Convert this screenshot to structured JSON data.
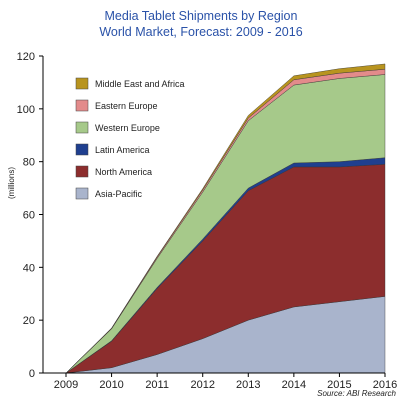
{
  "chart_data": {
    "type": "area",
    "stacked": true,
    "title": "Media Tablet Shipments by Region",
    "subtitle": "World Market, Forecast: 2009 - 2016",
    "ylabel": "(millions)",
    "xlabel": "",
    "source": "Source: ABI Research",
    "x": [
      "2009",
      "2010",
      "2011",
      "2012",
      "2013",
      "2014",
      "2015",
      "2016"
    ],
    "ylim": [
      0,
      120
    ],
    "yticks": [
      "0",
      "20",
      "40",
      "60",
      "80",
      "100",
      "120"
    ],
    "grid": false,
    "legend_position": "top-left",
    "series": [
      {
        "name": "Asia-Pacific",
        "color": "#a9b4cc",
        "values": [
          0,
          2,
          7,
          13,
          20,
          25,
          27,
          29
        ]
      },
      {
        "name": "North America",
        "color": "#8c2d2d",
        "values": [
          0,
          10,
          25,
          37,
          49,
          53,
          51,
          50
        ]
      },
      {
        "name": "Latin America",
        "color": "#1f3f8f",
        "values": [
          0,
          0.2,
          0.4,
          0.7,
          1,
          1.5,
          2,
          2.5
        ]
      },
      {
        "name": "Western Europe",
        "color": "#a6c98a",
        "values": [
          0,
          4.5,
          11,
          17.8,
          25.5,
          29.5,
          31.5,
          31.5
        ]
      },
      {
        "name": "Eastern Europe",
        "color": "#e38b8b",
        "values": [
          0,
          0.2,
          0.5,
          0.8,
          1,
          2,
          2,
          2
        ]
      },
      {
        "name": "Middle East and Africa",
        "color": "#b8941f",
        "values": [
          0,
          0.1,
          0.3,
          0.5,
          1,
          1.5,
          1.7,
          2
        ]
      }
    ],
    "legend_order": [
      "Middle East and Africa",
      "Eastern Europe",
      "Western Europe",
      "Latin America",
      "North America",
      "Asia-Pacific"
    ]
  }
}
